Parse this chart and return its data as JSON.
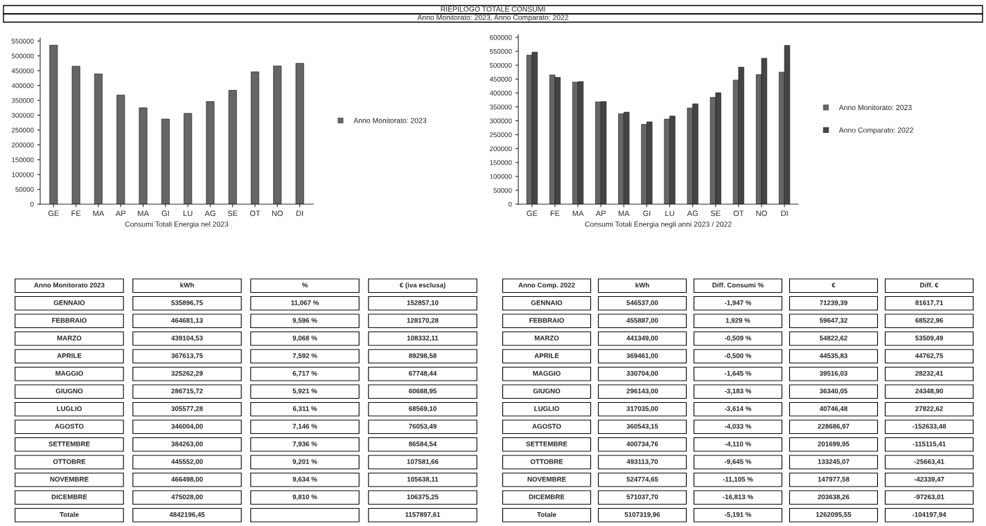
{
  "chart_data": [
    {
      "type": "other",
      "title": "RIEPILOGO TOTALE CONSUMI",
      "subtitle": "Anno Monitorato: 2023, Anno Comparato: 2022"
    },
    {
      "type": "bar",
      "xlabel": "Consumi Totali Energia nel 2023",
      "categories": [
        "GE",
        "FE",
        "MA",
        "AP",
        "MA",
        "GI",
        "LU",
        "AG",
        "SE",
        "OT",
        "NO",
        "DI"
      ],
      "series": [
        {
          "name": "Anno Monitorato: 2023",
          "color": "#666666",
          "values": [
            536000,
            465000,
            439000,
            368000,
            325000,
            287000,
            306000,
            346000,
            384000,
            446000,
            466000,
            475000
          ]
        }
      ],
      "ylim": [
        0,
        560000
      ],
      "yticks": [
        0,
        50000,
        100000,
        150000,
        200000,
        250000,
        300000,
        350000,
        400000,
        450000,
        500000,
        550000
      ],
      "legend": "right",
      "grid": false
    },
    {
      "type": "bar",
      "xlabel": "Consumi Totali Energia negli anni 2023 / 2022",
      "categories": [
        "GE",
        "FE",
        "MA",
        "AP",
        "MA",
        "GI",
        "LU",
        "AG",
        "SE",
        "OT",
        "NO",
        "DI"
      ],
      "series": [
        {
          "name": "Anno Monitorato: 2023",
          "color": "#666666",
          "values": [
            536000,
            465000,
            439000,
            368000,
            325000,
            287000,
            306000,
            346000,
            384000,
            446000,
            466000,
            475000
          ]
        },
        {
          "name": "Anno Comparato: 2022",
          "color": "#444444",
          "values": [
            547000,
            456000,
            441000,
            369000,
            331000,
            296000,
            317000,
            361000,
            401000,
            493000,
            525000,
            571000
          ]
        }
      ],
      "ylim": [
        0,
        610000
      ],
      "yticks": [
        0,
        50000,
        100000,
        150000,
        200000,
        250000,
        300000,
        350000,
        400000,
        450000,
        500000,
        550000,
        600000
      ],
      "legend": "right",
      "grid": false
    },
    {
      "type": "other",
      "categories": [
        "Anno Monitorato 2023",
        "kWh",
        "%",
        "€ (iva esclusa)"
      ],
      "y_categories": [
        "GENNAIO",
        "FEBBRAIO",
        "MARZO",
        "APRILE",
        "MAGGIO",
        "GIUGNO",
        "LUGLIO",
        "AGOSTO",
        "SETTEMBRE",
        "OTTOBRE",
        "NOVEMBRE",
        "DICEMBRE",
        "Totale"
      ],
      "cell_labels": [
        [
          "535896,75",
          "11,067 %",
          "152857,10"
        ],
        [
          "464681,13",
          "9,596 %",
          "128170,28"
        ],
        [
          "439104,53",
          "9,068 %",
          "108332,11"
        ],
        [
          "367613,75",
          "7,592 %",
          "89298,58"
        ],
        [
          "325262,29",
          "6,717 %",
          "67748,44"
        ],
        [
          "286715,72",
          "5,921 %",
          "60688,95"
        ],
        [
          "305577,28",
          "6,311 %",
          "68569,10"
        ],
        [
          "346004,00",
          "7,146 %",
          "76053,49"
        ],
        [
          "384263,00",
          "7,936 %",
          "86584,54"
        ],
        [
          "445552,00",
          "9,201 %",
          "107581,66"
        ],
        [
          "466498,00",
          "9,634 %",
          "105638,11"
        ],
        [
          "475028,00",
          "9,810 %",
          "106375,25"
        ],
        [
          "4842196,45",
          null,
          "1157897,61"
        ]
      ]
    },
    {
      "type": "other",
      "categories": [
        "Anno Comp. 2022",
        "kWh",
        "Diff. Consumi %",
        "€",
        "Diff. €"
      ],
      "y_categories": [
        "GENNAIO",
        "FEBBRAIO",
        "MARZO",
        "APRILE",
        "MAGGIO",
        "GIUGNO",
        "LUGLIO",
        "AGOSTO",
        "SETTEMBRE",
        "OTTOBRE",
        "NOVEMBRE",
        "DICEMBRE",
        "Totale"
      ],
      "cell_labels": [
        [
          "546537,00",
          "-1,947 %",
          "71239,39",
          "81617,71"
        ],
        [
          "455887,00",
          "1,929 %",
          "59647,32",
          "68522,96"
        ],
        [
          "441349,00",
          "-0,509 %",
          "54822,62",
          "53509,49"
        ],
        [
          "369461,00",
          "-0,500 %",
          "44535,83",
          "44762,75"
        ],
        [
          "330704,00",
          "-1,645 %",
          "39516,03",
          "28232,41"
        ],
        [
          "296143,00",
          "-3,183 %",
          "36340,05",
          "24348,90"
        ],
        [
          "317035,00",
          "-3,614 %",
          "40746,48",
          "27822,62"
        ],
        [
          "360543,15",
          "-4,033 %",
          "228686,97",
          "-152633,48"
        ],
        [
          "400734,76",
          "-4,110 %",
          "201699,95",
          "-115115,41"
        ],
        [
          "493113,70",
          "-9,645 %",
          "133245,07",
          "-25663,41"
        ],
        [
          "524774,65",
          "-11,105 %",
          "147977,58",
          "-42339,47"
        ],
        [
          "571037,70",
          "-16,813 %",
          "203638,26",
          "-97263,01"
        ],
        [
          "5107319,96",
          "-5,191 %",
          "1262095,55",
          "-104197,94"
        ]
      ]
    }
  ]
}
